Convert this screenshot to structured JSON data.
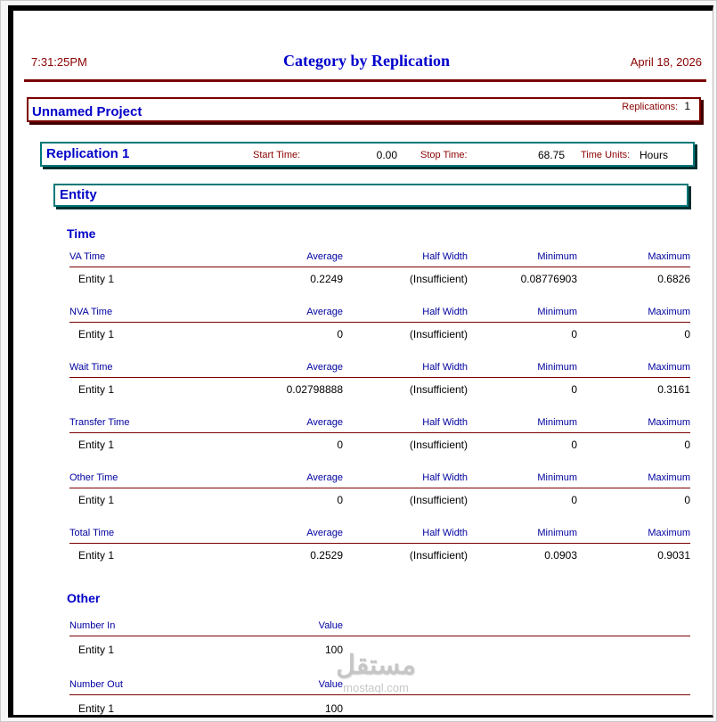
{
  "header": {
    "time": "7:31:25PM",
    "title": "Category by Replication",
    "date": "April 18, 2026"
  },
  "project": {
    "title": "Unnamed Project",
    "replications_label": "Replications:",
    "replications_value": "1"
  },
  "replication": {
    "title": "Replication 1",
    "start_time_label": "Start Time:",
    "start_time_value": "0.00",
    "stop_time_label": "Stop Time:",
    "stop_time_value": "68.75",
    "time_units_label": "Time Units:",
    "time_units_value": "Hours"
  },
  "category": {
    "title": "Entity"
  },
  "time_section": {
    "title": "Time",
    "columns": [
      "Average",
      "Half Width",
      "Minimum",
      "Maximum"
    ],
    "tables": [
      {
        "label": "VA Time",
        "rows": [
          {
            "name": "Entity 1",
            "values": [
              "0.2249",
              "(Insufficient)",
              "0.08776903",
              "0.6826"
            ]
          }
        ]
      },
      {
        "label": "NVA Time",
        "rows": [
          {
            "name": "Entity 1",
            "values": [
              "0",
              "(Insufficient)",
              "0",
              "0"
            ]
          }
        ]
      },
      {
        "label": "Wait Time",
        "rows": [
          {
            "name": "Entity 1",
            "values": [
              "0.02798888",
              "(Insufficient)",
              "0",
              "0.3161"
            ]
          }
        ]
      },
      {
        "label": "Transfer Time",
        "rows": [
          {
            "name": "Entity 1",
            "values": [
              "0",
              "(Insufficient)",
              "0",
              "0"
            ]
          }
        ]
      },
      {
        "label": "Other Time",
        "rows": [
          {
            "name": "Entity 1",
            "values": [
              "0",
              "(Insufficient)",
              "0",
              "0"
            ]
          }
        ]
      },
      {
        "label": "Total Time",
        "rows": [
          {
            "name": "Entity 1",
            "values": [
              "0.2529",
              "(Insufficient)",
              "0.0903",
              "0.9031"
            ]
          }
        ]
      }
    ]
  },
  "other_section": {
    "title": "Other",
    "tables": [
      {
        "label": "Number In",
        "value_header": "Value",
        "rows": [
          {
            "name": "Entity 1",
            "value": "100"
          }
        ]
      },
      {
        "label": "Number Out",
        "value_header": "Value",
        "rows": [
          {
            "name": "Entity 1",
            "value": "100"
          }
        ]
      }
    ]
  },
  "watermark": {
    "arabic": "مستقل",
    "domain": "mostaql.com"
  },
  "colors": {
    "maroon": "#7B0101",
    "dark_red_text": "#8B0000",
    "teal": "#007878",
    "heading_blue": "#0000C8",
    "column_blue": "#0000A0",
    "title_blue": "#0000CC"
  }
}
